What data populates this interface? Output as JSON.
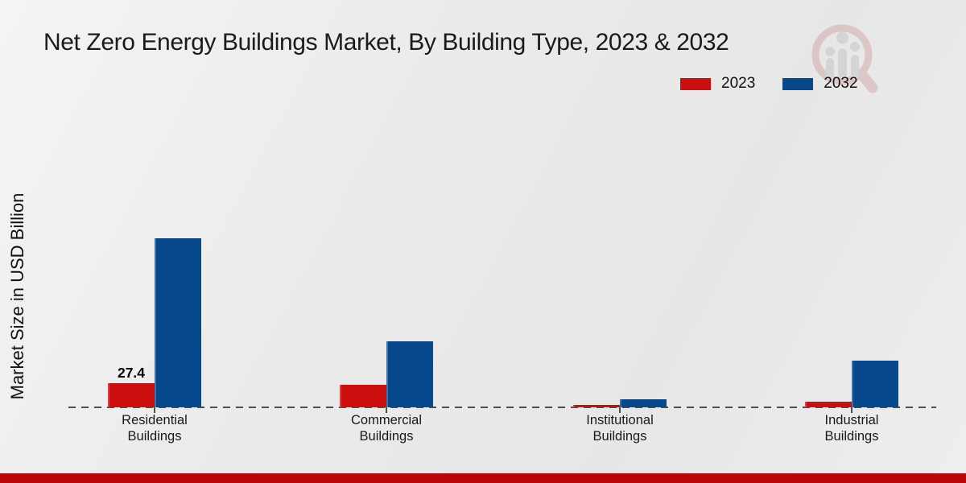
{
  "title": "Net Zero Energy Buildings Market, By Building Type, 2023 & 2032",
  "y_axis_label": "Market Size in USD Billion",
  "legend": {
    "position": "top-right",
    "items": [
      {
        "label": "2023",
        "color": "#cc0e0e"
      },
      {
        "label": "2032",
        "color": "#07498c"
      }
    ]
  },
  "watermark_logo": {
    "name": "magnifier-bar-chart-logo",
    "ring_color": "#cf9d9d",
    "bars_color": "#bfbfbf"
  },
  "chart_data": {
    "type": "bar",
    "title": "Net Zero Energy Buildings Market, By Building Type, 2023 & 2032",
    "xlabel": "",
    "ylabel": "Market Size in USD Billion",
    "value_unit": "USD Billion",
    "categories": [
      "Residential Buildings",
      "Commercial Buildings",
      "Institutional Buildings",
      "Industrial Buildings"
    ],
    "series": [
      {
        "name": "2023",
        "color": "#cc0e0e",
        "values": [
          27.4,
          26.0,
          2.7,
          6.4
        ]
      },
      {
        "name": "2032",
        "color": "#07498c",
        "values": [
          191.8,
          75.0,
          9.1,
          53.0
        ]
      }
    ],
    "data_labels": [
      {
        "series_index": 0,
        "category_index": 0,
        "text": "27.4"
      }
    ],
    "legend_position": "top-right",
    "grid": false,
    "x_axis_style": "dashed-baseline",
    "y_axis_ticks_visible": false,
    "ylim": [
      0,
      210
    ]
  },
  "footer_band": {
    "color": "#b90606"
  }
}
